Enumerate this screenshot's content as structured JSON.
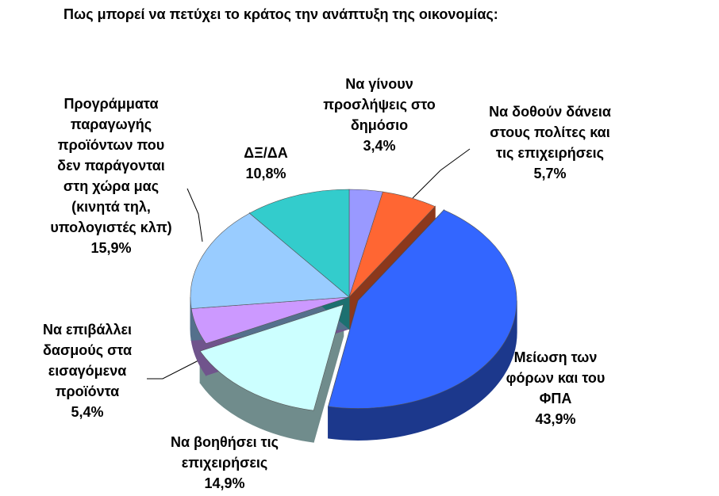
{
  "chart_data": {
    "type": "pie3d",
    "title": "Πως μπορεί να πετύχει το κράτος την ανάπτυξη της οικονομίας:",
    "categories": [
      "Να γίνουν\nπροσλήψεις στο\nδημόσιο",
      "Να δοθούν δάνεια\nστους πολίτες και\nτις επιχειρήσεις",
      "Μείωση των\nφόρων και του\nΦΠΑ",
      "Να βοηθήσει τις\nεπιχειρήσεις",
      "Να επιβάλλει\nδασμούς στα\nεισαγόμενα\nπροϊόντα",
      "Προγράμματα\nπαραγωγής\nπροϊόντων που\nδεν παράγονται\nστη χώρα μας\n(κινητά τηλ,\nυπολογιστές κλπ)",
      "ΔΞ/ΔΑ"
    ],
    "values": [
      3.4,
      5.7,
      43.9,
      14.9,
      5.4,
      15.9,
      10.8
    ],
    "value_labels": [
      "3,4%",
      "5,7%",
      "43,9%",
      "14,9%",
      "5,4%",
      "15,9%",
      "10,8%"
    ],
    "colors": [
      "#9999ff",
      "#ff6633",
      "#3366ff",
      "#ccffff",
      "#cc99ff",
      "#99ccff",
      "#33cccc"
    ]
  }
}
